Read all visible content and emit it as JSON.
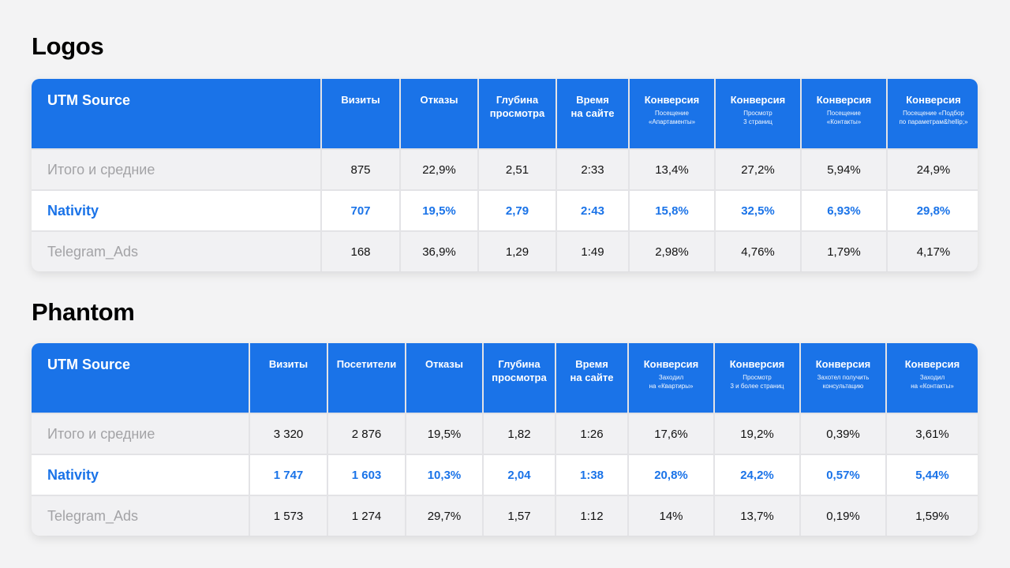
{
  "logos": {
    "title": "Logos",
    "headers": [
      {
        "main": "UTM Source",
        "sub": ""
      },
      {
        "main": "Визиты",
        "sub": ""
      },
      {
        "main": "Отказы",
        "sub": ""
      },
      {
        "main": "Глубина\nпросмотра",
        "sub": ""
      },
      {
        "main": "Время\nна сайте",
        "sub": ""
      },
      {
        "main": "Конверсия",
        "sub": "Посещение\n«Апартаменты»"
      },
      {
        "main": "Конверсия",
        "sub": "Просмотр\n3 страниц"
      },
      {
        "main": "Конверсия",
        "sub": "Посещение\n«Контакты»"
      },
      {
        "main": "Конверсия",
        "sub": "Посещение «Подбор\nпо параметрам&hellip;»"
      }
    ],
    "rows": [
      [
        "Итого и средние",
        "875",
        "22,9%",
        "2,51",
        "2:33",
        "13,4%",
        "27,2%",
        "5,94%",
        "24,9%"
      ],
      [
        "Nativity",
        "707",
        "19,5%",
        "2,79",
        "2:43",
        "15,8%",
        "32,5%",
        "6,93%",
        "29,8%"
      ],
      [
        "Telegram_Ads",
        "168",
        "36,9%",
        "1,29",
        "1:49",
        "2,98%",
        "4,76%",
        "1,79%",
        "4,17%"
      ]
    ]
  },
  "phantom": {
    "title": "Phantom",
    "headers": [
      {
        "main": "UTM Source",
        "sub": ""
      },
      {
        "main": "Визиты",
        "sub": ""
      },
      {
        "main": "Посетители",
        "sub": ""
      },
      {
        "main": "Отказы",
        "sub": ""
      },
      {
        "main": "Глубина\nпросмотра",
        "sub": ""
      },
      {
        "main": "Время\nна сайте",
        "sub": ""
      },
      {
        "main": "Конверсия",
        "sub": "Заходил\nна «Квартиры»"
      },
      {
        "main": "Конверсия",
        "sub": "Просмотр\n3 и более страниц"
      },
      {
        "main": "Конверсия",
        "sub": "Захотел получить\nконсультацию"
      },
      {
        "main": "Конверсия",
        "sub": "Заходил\nна «Контакты»"
      }
    ],
    "rows": [
      [
        "Итого и средние",
        "3 320",
        "2 876",
        "19,5%",
        "1,82",
        "1:26",
        "17,6%",
        "19,2%",
        "0,39%",
        "3,61%"
      ],
      [
        "Nativity",
        "1 747",
        "1 603",
        "10,3%",
        "2,04",
        "1:38",
        "20,8%",
        "24,2%",
        "0,57%",
        "5,44%"
      ],
      [
        "Telegram_Ads",
        "1 573",
        "1 274",
        "29,7%",
        "1,57",
        "1:12",
        "14%",
        "13,7%",
        "0,19%",
        "1,59%"
      ]
    ]
  },
  "colors": {
    "accent": "#1a73e8",
    "background": "#f3f3f4",
    "muted_text": "#a3a3a6"
  }
}
